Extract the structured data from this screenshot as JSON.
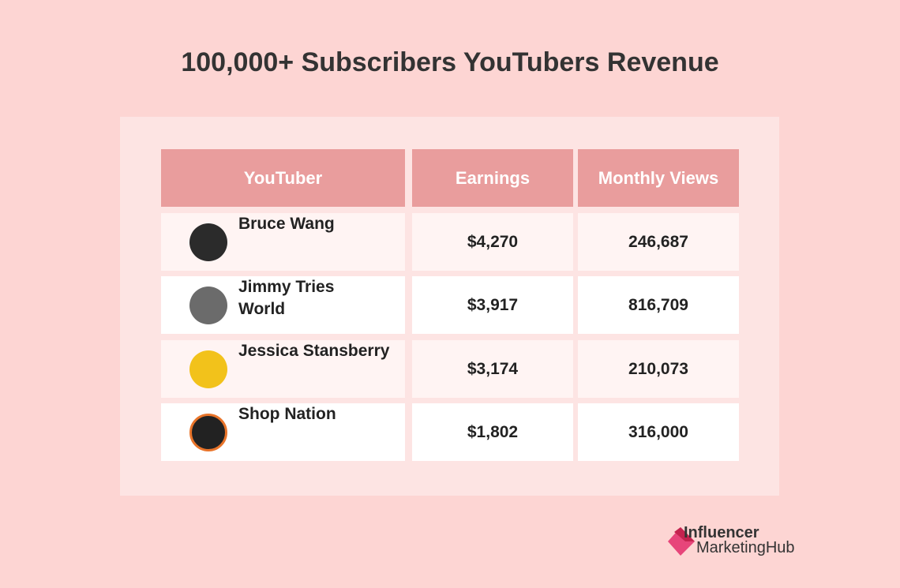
{
  "header": {
    "title": "100,000+ Subscribers YouTubers Revenue"
  },
  "table": {
    "columns": [
      "YouTuber",
      "Earnings",
      "Monthly Views"
    ],
    "rows": [
      {
        "name": [
          "Bruce Wang"
        ],
        "earnings": "$4,270",
        "views": "246,687"
      },
      {
        "name": [
          "Jimmy Tries",
          "World"
        ],
        "earnings": "$3,917",
        "views": "816,709"
      },
      {
        "name": [
          "Jessica Stansberry"
        ],
        "earnings": "$3,174",
        "views": "210,073"
      },
      {
        "name": [
          "Shop Nation"
        ],
        "earnings": "$1,802",
        "views": "316,000"
      }
    ]
  },
  "logo": {
    "line1": "Influencer",
    "line2": "MarketingHub"
  }
}
